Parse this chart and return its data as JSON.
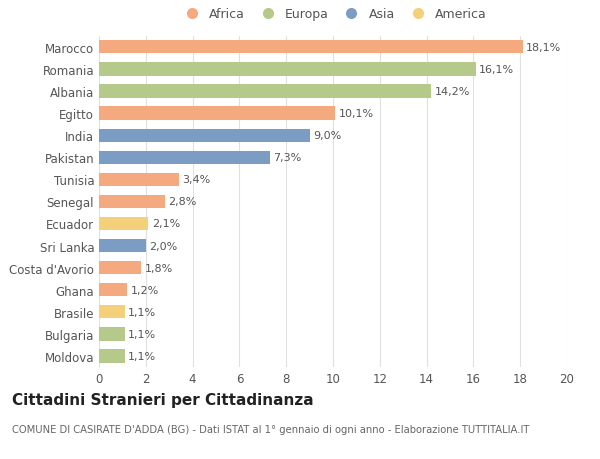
{
  "countries": [
    "Marocco",
    "Romania",
    "Albania",
    "Egitto",
    "India",
    "Pakistan",
    "Tunisia",
    "Senegal",
    "Ecuador",
    "Sri Lanka",
    "Costa d'Avorio",
    "Ghana",
    "Brasile",
    "Bulgaria",
    "Moldova"
  ],
  "values": [
    18.1,
    16.1,
    14.2,
    10.1,
    9.0,
    7.3,
    3.4,
    2.8,
    2.1,
    2.0,
    1.8,
    1.2,
    1.1,
    1.1,
    1.1
  ],
  "labels": [
    "18,1%",
    "16,1%",
    "14,2%",
    "10,1%",
    "9,0%",
    "7,3%",
    "3,4%",
    "2,8%",
    "2,1%",
    "2,0%",
    "1,8%",
    "1,2%",
    "1,1%",
    "1,1%",
    "1,1%"
  ],
  "continents": [
    "Africa",
    "Europa",
    "Europa",
    "Africa",
    "Asia",
    "Asia",
    "Africa",
    "Africa",
    "America",
    "Asia",
    "Africa",
    "Africa",
    "America",
    "Europa",
    "Europa"
  ],
  "continent_colors": {
    "Africa": "#F4A97F",
    "Europa": "#B5C98A",
    "Asia": "#7B9DC4",
    "America": "#F5D07A"
  },
  "legend_order": [
    "Africa",
    "Europa",
    "Asia",
    "America"
  ],
  "xlim": [
    0,
    20
  ],
  "xticks": [
    0,
    2,
    4,
    6,
    8,
    10,
    12,
    14,
    16,
    18,
    20
  ],
  "title": "Cittadini Stranieri per Cittadinanza",
  "subtitle": "COMUNE DI CASIRATE D'ADDA (BG) - Dati ISTAT al 1° gennaio di ogni anno - Elaborazione TUTTITALIA.IT",
  "background_color": "#ffffff",
  "grid_color": "#e0e0e0",
  "bar_height": 0.6,
  "label_fontsize": 8.0,
  "ytick_fontsize": 8.5,
  "xtick_fontsize": 8.5,
  "title_fontsize": 11,
  "subtitle_fontsize": 7.2
}
